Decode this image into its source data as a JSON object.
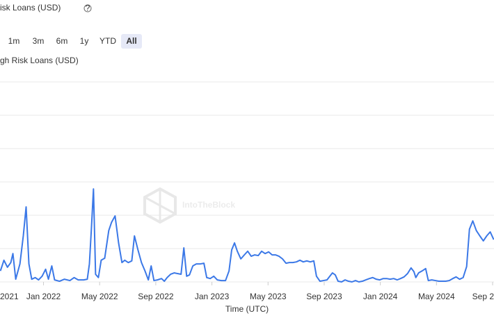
{
  "chart_data": {
    "type": "line",
    "title": "isk Loans (USD)",
    "range_buttons": [
      "1m",
      "3m",
      "6m",
      "1y",
      "YTD",
      "All"
    ],
    "active_button": "All",
    "x_label": "Time (UTC)",
    "watermark": "IntoTheBlock",
    "xlim": [
      8.9,
      44.1
    ],
    "xticks": [
      {
        "value": 8,
        "label": "2021"
      },
      {
        "value": 12,
        "label": "Jan 2022"
      },
      {
        "value": 16,
        "label": "May 2022"
      },
      {
        "value": 20,
        "label": "Sep 2022"
      },
      {
        "value": 24,
        "label": "Jan 2023"
      },
      {
        "value": 28,
        "label": "May 2023"
      },
      {
        "value": 32,
        "label": "Sep 2023"
      },
      {
        "value": 36,
        "label": "Jan 2024"
      },
      {
        "value": 40,
        "label": "May 2024"
      },
      {
        "value": 44,
        "label": "Sep 2"
      }
    ],
    "ylim": [
      0,
      6
    ],
    "grid_lines": [
      0,
      1,
      2,
      3,
      4,
      5,
      6
    ],
    "x": [
      8.93,
      9.18,
      9.43,
      9.67,
      9.82,
      10.02,
      10.32,
      10.56,
      10.76,
      10.96,
      11.16,
      11.41,
      11.65,
      11.9,
      12.15,
      12.35,
      12.59,
      12.79,
      13.14,
      13.48,
      13.88,
      14.18,
      14.47,
      14.87,
      15.12,
      15.27,
      15.41,
      15.56,
      15.71,
      15.91,
      16.11,
      16.36,
      16.65,
      16.85,
      17.1,
      17.35,
      17.59,
      17.79,
      18.04,
      18.29,
      18.48,
      18.73,
      18.98,
      19.23,
      19.47,
      19.67,
      19.87,
      20.12,
      20.41,
      20.61,
      20.81,
      21.06,
      21.31,
      21.55,
      21.8,
      22.0,
      22.2,
      22.4,
      22.64,
      22.89,
      23.19,
      23.43,
      23.63,
      23.88,
      24.13,
      24.38,
      24.67,
      24.97,
      25.22,
      25.41,
      25.61,
      25.81,
      26.06,
      26.31,
      26.55,
      26.8,
      27.05,
      27.3,
      27.54,
      27.79,
      28.04,
      28.29,
      28.53,
      28.78,
      29.03,
      29.28,
      29.52,
      29.77,
      30.02,
      30.27,
      30.51,
      30.76,
      31.01,
      31.26,
      31.45,
      31.7,
      31.95,
      32.2,
      32.4,
      32.59,
      32.79,
      32.99,
      33.24,
      33.49,
      33.73,
      33.98,
      34.23,
      34.47,
      34.72,
      34.97,
      35.22,
      35.46,
      35.71,
      35.96,
      36.21,
      36.45,
      36.7,
      36.95,
      37.2,
      37.44,
      37.69,
      37.94,
      38.19,
      38.39,
      38.53,
      38.73,
      38.98,
      39.23,
      39.42,
      39.67,
      39.92,
      40.17,
      40.41,
      40.66,
      40.91,
      41.16,
      41.4,
      41.65,
      41.9,
      42.15,
      42.35,
      42.59,
      42.84,
      43.09,
      43.34,
      43.58,
      43.83,
      44.08
    ],
    "series": [
      {
        "name": "gh Risk Loans (USD)",
        "color": "#3b78e7",
        "values": [
          0.33,
          0.65,
          0.44,
          0.58,
          0.85,
          0.08,
          0.54,
          1.38,
          2.25,
          0.54,
          0.08,
          0.13,
          0.06,
          0.17,
          0.38,
          0.08,
          0.48,
          0.06,
          0.02,
          0.08,
          0.04,
          0.13,
          0.06,
          0.06,
          0.08,
          0.54,
          1.58,
          2.79,
          0.23,
          0.13,
          0.65,
          0.71,
          1.54,
          1.79,
          1.98,
          1.17,
          0.58,
          0.65,
          0.58,
          0.63,
          1.38,
          0.96,
          0.58,
          0.33,
          0.06,
          0.48,
          0.04,
          0.06,
          0.1,
          0.02,
          0.13,
          0.23,
          0.27,
          0.25,
          0.23,
          1.02,
          0.17,
          0.21,
          0.48,
          0.54,
          0.54,
          0.56,
          0.13,
          0.1,
          0.17,
          0.06,
          0.04,
          0.04,
          0.33,
          0.96,
          1.17,
          0.92,
          0.69,
          0.81,
          0.92,
          0.77,
          0.81,
          0.79,
          0.92,
          0.85,
          0.9,
          0.81,
          0.81,
          0.77,
          0.69,
          0.56,
          0.58,
          0.58,
          0.6,
          0.65,
          0.6,
          0.63,
          0.6,
          0.63,
          0.17,
          0.02,
          0.04,
          0.06,
          0.17,
          0.27,
          0.21,
          0.02,
          0,
          0.06,
          0.02,
          0,
          0.04,
          0,
          0.02,
          0.06,
          0.1,
          0.13,
          0.08,
          0.06,
          0.1,
          0.1,
          0.08,
          0.1,
          0.06,
          0.1,
          0.15,
          0.25,
          0.42,
          0.31,
          0.13,
          0.27,
          0.33,
          0.4,
          0.04,
          0.06,
          0.04,
          0.02,
          0.02,
          0.02,
          0.04,
          0.1,
          0.15,
          0.08,
          0.13,
          0.46,
          1.58,
          1.83,
          1.54,
          1.38,
          1.23,
          1.38,
          1.5,
          1.27
        ]
      }
    ]
  }
}
